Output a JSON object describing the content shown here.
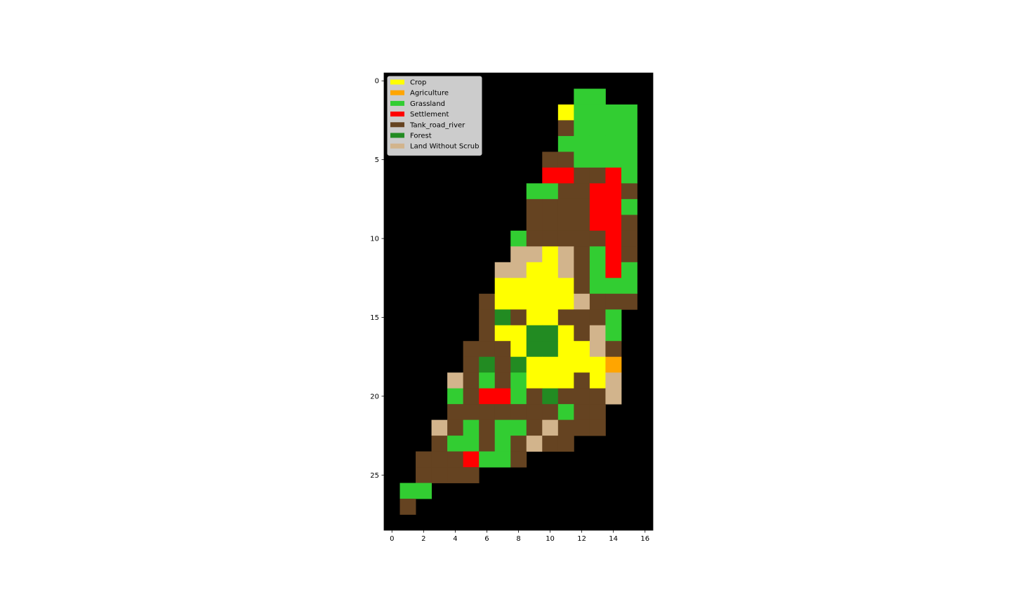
{
  "chart_data": {
    "type": "heatmap",
    "title": "",
    "xlabel": "",
    "ylabel": "",
    "xlim": [
      -0.5,
      16.5
    ],
    "ylim": [
      28.5,
      -0.5
    ],
    "x_ticks": [
      0,
      2,
      4,
      6,
      8,
      10,
      12,
      14,
      16
    ],
    "y_ticks": [
      0,
      5,
      10,
      15,
      20,
      25
    ],
    "background_color": "#000000",
    "legend": {
      "position": "upper left",
      "entries": [
        {
          "key": "Y",
          "label": "Crop",
          "color": "#ffff00"
        },
        {
          "key": "A",
          "label": "Agriculture",
          "color": "#ffa500"
        },
        {
          "key": "G",
          "label": "Grassland",
          "color": "#32cd32"
        },
        {
          "key": "S",
          "label": "Settlement",
          "color": "#ff0000"
        },
        {
          "key": "B",
          "label": "Tank_road_river",
          "color": "#654321"
        },
        {
          "key": "F",
          "label": "Forest",
          "color": "#228b22"
        },
        {
          "key": "T",
          "label": "Land Without Scrub",
          "color": "#d2b48c"
        }
      ]
    },
    "grid_legend": "Each string is one image row (y = 0 to 28); character index = column x (0 to 16). '.' = no data (black).",
    "grid": [
      ".................",
      "............GG...",
      "...........YGGGG.",
      "...........BGGGG.",
      "...........GGGGG.",
      "..........BBGGGG.",
      "..........SSBBSG.",
      ".........GGBBSSB.",
      ".........BBBBSSG.",
      ".........BBBBSSB.",
      "........GBBBBBSB.",
      "........TTYTBGSB.",
      ".......TTYYTBGSG.",
      ".......YYYYYBGGG.",
      "......BYYYYYTBBB.",
      "......BFBYYBBBG..",
      "......BYYFFYBTG..",
      ".....BBBYFFYYTB..",
      ".....BFBFYYYYYA..",
      "....TBGBGYYYBYT..",
      "....GBSSGBFBBBT..",
      "....BBBBBBBGBB...",
      "...TBGBGGBTBBB...",
      "...BGGBGBTBB.....",
      "..BBBSGGB........",
      "..BBBB...........",
      ".GG..............",
      ".B...............",
      "................."
    ]
  }
}
